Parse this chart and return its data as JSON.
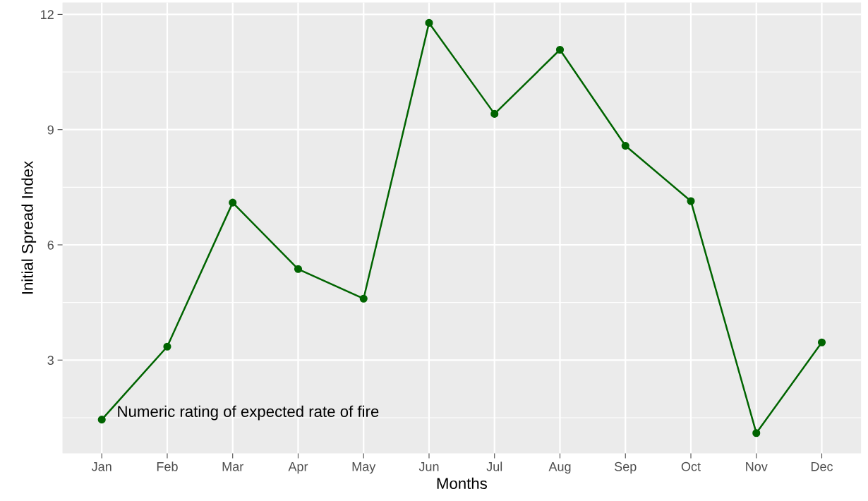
{
  "chart_data": {
    "type": "line",
    "xlabel": "Months",
    "ylabel": "Initial Spread Index",
    "categories": [
      "Jan",
      "Feb",
      "Mar",
      "Apr",
      "May",
      "Jun",
      "Jul",
      "Aug",
      "Sep",
      "Oct",
      "Nov",
      "Dec"
    ],
    "series": [
      {
        "color": "#006400",
        "values": [
          1.45,
          3.35,
          7.1,
          5.37,
          4.6,
          11.78,
          9.41,
          11.08,
          8.58,
          7.14,
          1.1,
          3.46
        ]
      }
    ],
    "ylim": [
      0.57,
      12.31
    ],
    "yticks": [
      3,
      6,
      9,
      12
    ],
    "grid": true,
    "marker": "circle",
    "line_style": "solid",
    "annotations": [
      "Numeric rating of expected rate of fire"
    ]
  }
}
